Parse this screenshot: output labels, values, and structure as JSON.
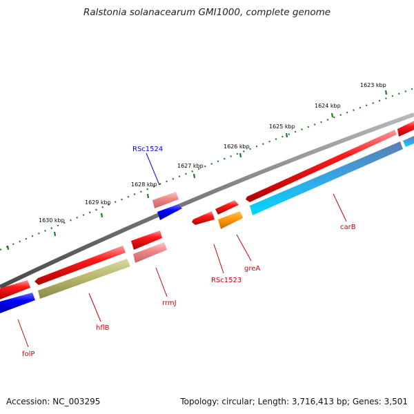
{
  "title": "Ralstonia solanacearum GMI1000, complete genome",
  "footer": {
    "accession": "Accession: NC_003295",
    "summary": "Topology: circular; Length: 3,716,413 bp; Genes: 3,501"
  },
  "colors": {
    "backbone": "#8a8a8a",
    "ticks": "#1f7a1f",
    "label_red": "#cc0000",
    "label_blue": "#0000cc"
  },
  "ruler_ticks": [
    {
      "label": "1623 kbp"
    },
    {
      "label": "1624 kbp"
    },
    {
      "label": "1625 kbp"
    },
    {
      "label": "1626 kbp"
    },
    {
      "label": "1627 kbp"
    },
    {
      "label": "1628 kbp"
    },
    {
      "label": "1629 kbp"
    },
    {
      "label": "1630 kbp"
    }
  ],
  "features": [
    {
      "name": "carB",
      "strand": "+",
      "color": "red"
    },
    {
      "name": "carB",
      "strand": "-",
      "color": "lightblue"
    },
    {
      "name": "greA",
      "strand": "-",
      "color": "orange"
    },
    {
      "name": "RSc1523",
      "strand": "+",
      "color": "red"
    },
    {
      "name": "RSc1524",
      "strand": "-",
      "color": "blue"
    },
    {
      "name": "rrmJ",
      "strand": "-",
      "color": "pink"
    },
    {
      "name": "hflB",
      "strand": "-",
      "color": "olive"
    },
    {
      "name": "folP",
      "strand": "-",
      "color": "blue"
    }
  ],
  "labels": [
    {
      "text": "RSc1524",
      "color": "blue"
    },
    {
      "text": "carB",
      "color": "red"
    },
    {
      "text": "greA",
      "color": "red"
    },
    {
      "text": "RSc1523",
      "color": "red"
    },
    {
      "text": "rrmJ",
      "color": "red"
    },
    {
      "text": "hflB",
      "color": "red"
    },
    {
      "text": "folP",
      "color": "red"
    }
  ]
}
